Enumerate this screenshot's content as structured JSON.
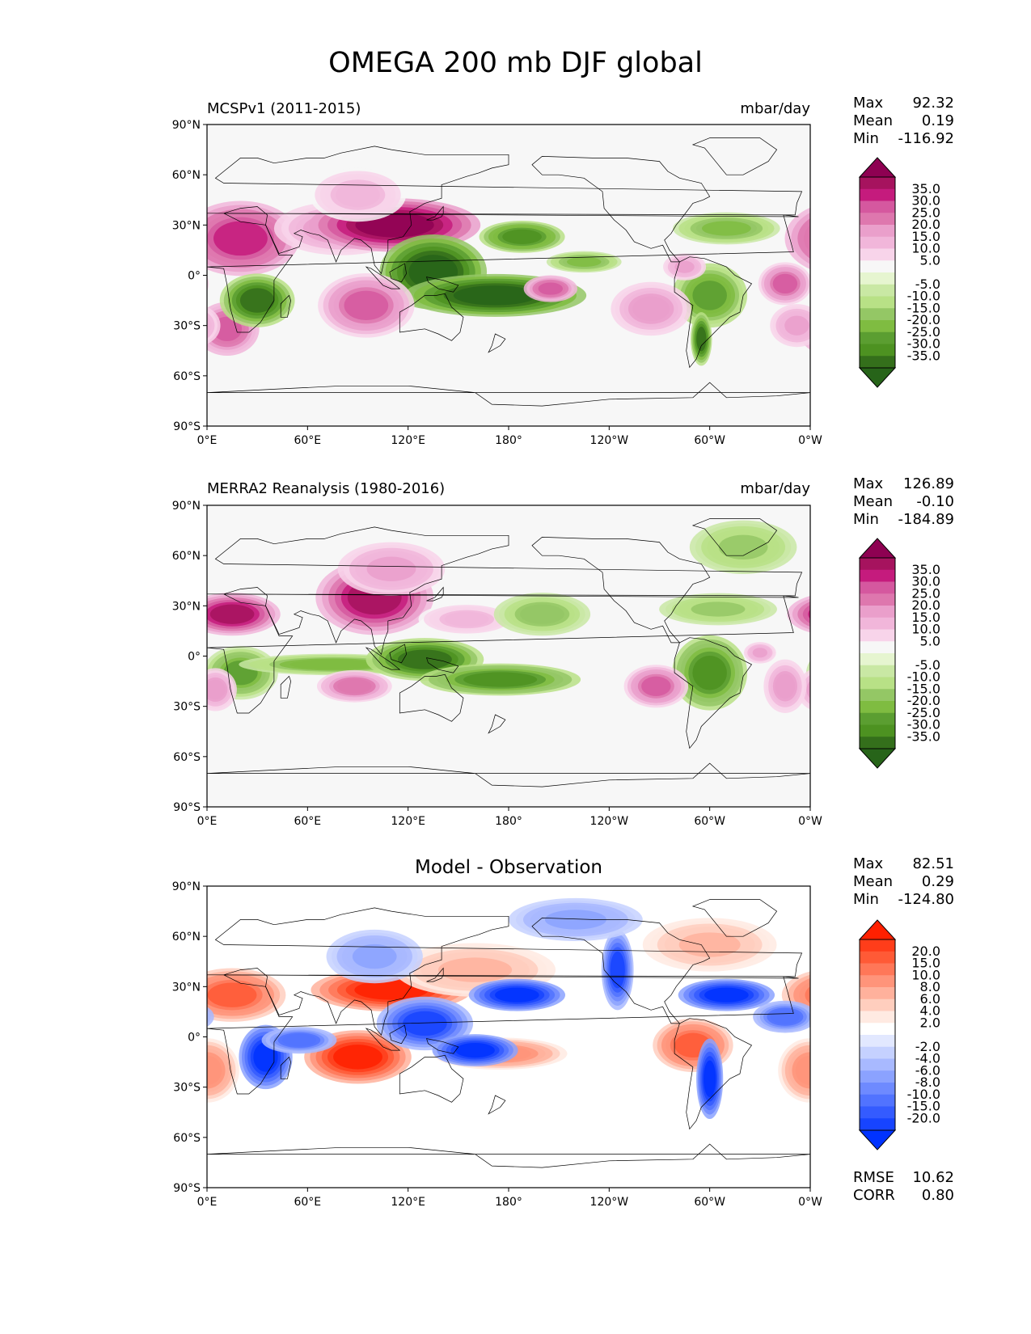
{
  "title": "OMEGA 200 mb DJF global",
  "chart_data": [
    {
      "type": "heatmap",
      "left_title": "MCSPv1 (2011-2015)",
      "right_title": "mbar/day",
      "stats": [
        {
          "label": "Max",
          "value": "92.32"
        },
        {
          "label": "Mean",
          "value": "0.19"
        },
        {
          "label": "Min",
          "value": "-116.92"
        }
      ],
      "xticks": [
        "0°E",
        "60°E",
        "120°E",
        "180°",
        "120°W",
        "60°W",
        "0°W"
      ],
      "yticks": [
        "90°N",
        "60°N",
        "30°N",
        "0°",
        "30°S",
        "60°S",
        "90°S"
      ],
      "xlim": [
        0,
        360
      ],
      "ylim": [
        -90,
        90
      ],
      "colorbar": {
        "labels": [
          "35.0",
          "30.0",
          "25.0",
          "20.0",
          "15.0",
          "10.0",
          "5.0",
          "-5.0",
          "-10.0",
          "-15.0",
          "-20.0",
          "-25.0",
          "-30.0",
          "-35.0"
        ],
        "colors": [
          "#8e0152",
          "#a6135e",
          "#c51b7d",
          "#d5589f",
          "#de77ae",
          "#ea9fcb",
          "#f1b6da",
          "#f8d4ea",
          "#f7f7f7",
          "#e6f5d0",
          "#c9e8a4",
          "#b8e186",
          "#94c765",
          "#7fbc41",
          "#5b9e31",
          "#4d9221",
          "#346f1b",
          "#276419"
        ]
      },
      "regions": [
        {
          "lon": 20,
          "lat": 22,
          "rx": 22,
          "ry": 14,
          "v": 28
        },
        {
          "lon": 12,
          "lat": -32,
          "rx": 12,
          "ry": 10,
          "v": 24
        },
        {
          "lon": 80,
          "lat": 28,
          "rx": 25,
          "ry": 10,
          "v": 15
        },
        {
          "lon": 112,
          "lat": 30,
          "rx": 32,
          "ry": 10,
          "v": 36
        },
        {
          "lon": 90,
          "lat": 48,
          "rx": 18,
          "ry": 10,
          "v": 10
        },
        {
          "lon": 30,
          "lat": -15,
          "rx": 14,
          "ry": 10,
          "v": -32
        },
        {
          "lon": 135,
          "lat": 2,
          "rx": 20,
          "ry": 14,
          "v": -36
        },
        {
          "lon": 172,
          "lat": -12,
          "rx": 34,
          "ry": 8,
          "v": -34
        },
        {
          "lon": 188,
          "lat": 23,
          "rx": 16,
          "ry": 6,
          "v": -28
        },
        {
          "lon": 225,
          "lat": 8,
          "rx": 14,
          "ry": 4,
          "v": -18
        },
        {
          "lon": 300,
          "lat": -12,
          "rx": 14,
          "ry": 12,
          "v": -24
        },
        {
          "lon": 295,
          "lat": -38,
          "rx": 4,
          "ry": 10,
          "v": -30
        },
        {
          "lon": 310,
          "lat": 28,
          "rx": 20,
          "ry": 6,
          "v": -18
        },
        {
          "lon": 95,
          "lat": -18,
          "rx": 18,
          "ry": 12,
          "v": 22
        },
        {
          "lon": 205,
          "lat": -8,
          "rx": 10,
          "ry": 5,
          "v": 24
        },
        {
          "lon": 265,
          "lat": -20,
          "rx": 15,
          "ry": 10,
          "v": 16
        },
        {
          "lon": 345,
          "lat": -5,
          "rx": 10,
          "ry": 8,
          "v": 22
        },
        {
          "lon": 285,
          "lat": 5,
          "rx": 8,
          "ry": 5,
          "v": 14
        },
        {
          "lon": 352,
          "lat": -30,
          "rx": 10,
          "ry": 8,
          "v": 14
        }
      ]
    },
    {
      "type": "heatmap",
      "left_title": "MERRA2 Reanalysis (1980-2016)",
      "right_title": "mbar/day",
      "stats": [
        {
          "label": "Max",
          "value": "126.89"
        },
        {
          "label": "Mean",
          "value": "-0.10"
        },
        {
          "label": "Min",
          "value": "-184.89"
        }
      ],
      "xticks": [
        "0°E",
        "60°E",
        "120°E",
        "180°",
        "120°W",
        "60°W",
        "0°W"
      ],
      "yticks": [
        "90°N",
        "60°N",
        "30°N",
        "0°",
        "30°S",
        "60°S",
        "90°S"
      ],
      "xlim": [
        0,
        360
      ],
      "ylim": [
        -90,
        90
      ],
      "colorbar": {
        "labels": [
          "35.0",
          "30.0",
          "25.0",
          "20.0",
          "15.0",
          "10.0",
          "5.0",
          "-5.0",
          "-10.0",
          "-15.0",
          "-20.0",
          "-25.0",
          "-30.0",
          "-35.0"
        ],
        "colors": [
          "#8e0152",
          "#a6135e",
          "#c51b7d",
          "#d5589f",
          "#de77ae",
          "#ea9fcb",
          "#f1b6da",
          "#f8d4ea",
          "#f7f7f7",
          "#e6f5d0",
          "#c9e8a4",
          "#b8e186",
          "#94c765",
          "#7fbc41",
          "#5b9e31",
          "#4d9221",
          "#346f1b",
          "#276419"
        ]
      },
      "regions": [
        {
          "lon": 15,
          "lat": 25,
          "rx": 18,
          "ry": 8,
          "v": 30
        },
        {
          "lon": 100,
          "lat": 35,
          "rx": 22,
          "ry": 14,
          "v": 32
        },
        {
          "lon": 110,
          "lat": 52,
          "rx": 20,
          "ry": 10,
          "v": 14
        },
        {
          "lon": 155,
          "lat": 22,
          "rx": 18,
          "ry": 6,
          "v": 10
        },
        {
          "lon": 20,
          "lat": -10,
          "rx": 14,
          "ry": 10,
          "v": -22
        },
        {
          "lon": 75,
          "lat": -5,
          "rx": 35,
          "ry": 4,
          "v": -20
        },
        {
          "lon": 130,
          "lat": -2,
          "rx": 22,
          "ry": 8,
          "v": -32
        },
        {
          "lon": 175,
          "lat": -14,
          "rx": 30,
          "ry": 6,
          "v": -26
        },
        {
          "lon": 200,
          "lat": 25,
          "rx": 18,
          "ry": 8,
          "v": -16
        },
        {
          "lon": 300,
          "lat": -10,
          "rx": 14,
          "ry": 14,
          "v": -26
        },
        {
          "lon": 305,
          "lat": 28,
          "rx": 22,
          "ry": 6,
          "v": -14
        },
        {
          "lon": 320,
          "lat": 65,
          "rx": 20,
          "ry": 10,
          "v": -14
        },
        {
          "lon": 88,
          "lat": -18,
          "rx": 14,
          "ry": 6,
          "v": 20
        },
        {
          "lon": 5,
          "lat": -20,
          "rx": 8,
          "ry": 8,
          "v": 16
        },
        {
          "lon": 268,
          "lat": -18,
          "rx": 12,
          "ry": 8,
          "v": 22
        },
        {
          "lon": 345,
          "lat": -18,
          "rx": 8,
          "ry": 10,
          "v": 16
        },
        {
          "lon": 330,
          "lat": 2,
          "rx": 6,
          "ry": 4,
          "v": 14
        }
      ]
    },
    {
      "type": "heatmap",
      "center_title": "Model - Observation",
      "stats": [
        {
          "label": "Max",
          "value": "82.51"
        },
        {
          "label": "Mean",
          "value": "0.29"
        },
        {
          "label": "Min",
          "value": "-124.80"
        }
      ],
      "extra_stats": [
        {
          "label": "RMSE",
          "value": "10.62"
        },
        {
          "label": "CORR",
          "value": "0.80"
        }
      ],
      "xticks": [
        "0°E",
        "60°E",
        "120°E",
        "180°",
        "120°W",
        "60°W",
        "0°W"
      ],
      "yticks": [
        "90°N",
        "60°N",
        "30°N",
        "0°",
        "30°S",
        "60°S",
        "90°S"
      ],
      "xlim": [
        0,
        360
      ],
      "ylim": [
        -90,
        90
      ],
      "colorbar": {
        "labels": [
          "20.0",
          "15.0",
          "10.0",
          "8.0",
          "6.0",
          "4.0",
          "2.0",
          "-2.0",
          "-4.0",
          "-6.0",
          "-8.0",
          "-10.0",
          "-15.0",
          "-20.0"
        ],
        "colors": [
          "#ff2000",
          "#ff3d1a",
          "#ff5a36",
          "#ff7758",
          "#ff947a",
          "#ffb19c",
          "#ffcebe",
          "#ffeae2",
          "#ffffff",
          "#e2e8ff",
          "#c5d1ff",
          "#a8b9ff",
          "#8ba2ff",
          "#6e8aff",
          "#5173ff",
          "#345bff",
          "#1744ff",
          "#0033ff"
        ]
      },
      "regions": [
        {
          "lon": 15,
          "lat": 25,
          "rx": 20,
          "ry": 10,
          "v": 16
        },
        {
          "lon": 110,
          "lat": 28,
          "rx": 30,
          "ry": 8,
          "v": 20
        },
        {
          "lon": 90,
          "lat": -12,
          "rx": 20,
          "ry": 10,
          "v": 20
        },
        {
          "lon": 0,
          "lat": -20,
          "rx": 12,
          "ry": 12,
          "v": 12
        },
        {
          "lon": 290,
          "lat": -5,
          "rx": 15,
          "ry": 10,
          "v": 16
        },
        {
          "lon": 175,
          "lat": -10,
          "rx": 25,
          "ry": 6,
          "v": 12
        },
        {
          "lon": 160,
          "lat": 40,
          "rx": 30,
          "ry": 10,
          "v": 8
        },
        {
          "lon": 300,
          "lat": 55,
          "rx": 25,
          "ry": 10,
          "v": 8
        },
        {
          "lon": 35,
          "lat": -12,
          "rx": 10,
          "ry": 12,
          "v": -20
        },
        {
          "lon": 55,
          "lat": -2,
          "rx": 14,
          "ry": 5,
          "v": -14
        },
        {
          "lon": 130,
          "lat": 8,
          "rx": 18,
          "ry": 10,
          "v": -18
        },
        {
          "lon": 160,
          "lat": -8,
          "rx": 16,
          "ry": 6,
          "v": -20
        },
        {
          "lon": 185,
          "lat": 25,
          "rx": 18,
          "ry": 6,
          "v": -22
        },
        {
          "lon": 245,
          "lat": 40,
          "rx": 6,
          "ry": 15,
          "v": -18
        },
        {
          "lon": 310,
          "lat": 25,
          "rx": 18,
          "ry": 6,
          "v": -20
        },
        {
          "lon": 300,
          "lat": -25,
          "rx": 5,
          "ry": 15,
          "v": -22
        },
        {
          "lon": 100,
          "lat": 48,
          "rx": 18,
          "ry": 10,
          "v": -8
        },
        {
          "lon": 220,
          "lat": 70,
          "rx": 25,
          "ry": 8,
          "v": -8
        },
        {
          "lon": 345,
          "lat": 12,
          "rx": 12,
          "ry": 6,
          "v": -14
        }
      ]
    }
  ]
}
